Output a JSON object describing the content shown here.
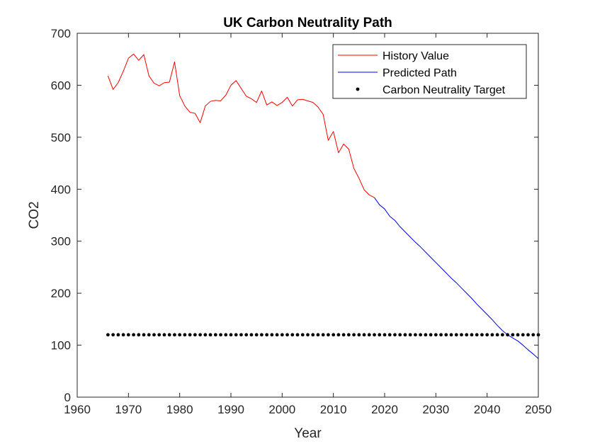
{
  "chart_data": {
    "type": "line",
    "title": "UK Carbon Neutrality Path",
    "xlabel": "Year",
    "ylabel": "CO2",
    "xlim": [
      1960,
      2050
    ],
    "ylim": [
      0,
      700
    ],
    "xticks": [
      1960,
      1970,
      1980,
      1990,
      2000,
      2010,
      2020,
      2030,
      2040,
      2050
    ],
    "yticks": [
      0,
      100,
      200,
      300,
      400,
      500,
      600,
      700
    ],
    "grid": false,
    "legend_position": "top-right",
    "series": [
      {
        "name": "History Value",
        "color": "#ff0000",
        "style": "line",
        "x": [
          1966,
          1967,
          1968,
          1969,
          1970,
          1971,
          1972,
          1973,
          1974,
          1975,
          1976,
          1977,
          1978,
          1979,
          1980,
          1981,
          1982,
          1983,
          1984,
          1985,
          1986,
          1987,
          1988,
          1989,
          1990,
          1991,
          1992,
          1993,
          1994,
          1995,
          1996,
          1997,
          1998,
          1999,
          2000,
          2001,
          2002,
          2003,
          2004,
          2005,
          2006,
          2007,
          2008,
          2009,
          2010,
          2011,
          2012,
          2013,
          2014,
          2015,
          2016,
          2017,
          2018
        ],
        "y": [
          618,
          592,
          605,
          627,
          652,
          660,
          648,
          659,
          618,
          604,
          599,
          605,
          606,
          645,
          580,
          560,
          548,
          546,
          528,
          560,
          569,
          571,
          570,
          581,
          600,
          609,
          594,
          579,
          574,
          567,
          589,
          562,
          568,
          561,
          567,
          577,
          560,
          572,
          573,
          570,
          567,
          558,
          544,
          494,
          511,
          470,
          487,
          477,
          440,
          421,
          399,
          389,
          384
        ]
      },
      {
        "name": "Predicted Path",
        "color": "#0000ff",
        "style": "line",
        "x": [
          2018,
          2019,
          2020,
          2021,
          2022,
          2023,
          2024,
          2025,
          2026,
          2027,
          2028,
          2029,
          2030,
          2031,
          2032,
          2033,
          2034,
          2035,
          2036,
          2037,
          2038,
          2039,
          2040,
          2041,
          2042,
          2043,
          2044,
          2045,
          2046,
          2047,
          2048,
          2049,
          2050
        ],
        "y": [
          384,
          370,
          362,
          348,
          340,
          328,
          318,
          308,
          298,
          289,
          279,
          269,
          259,
          249,
          239,
          229,
          220,
          210,
          200,
          190,
          179,
          169,
          159,
          149,
          138,
          128,
          120,
          114,
          108,
          100,
          91,
          83,
          74
        ]
      },
      {
        "name": "Carbon Neutrality Target",
        "color": "#000000",
        "style": "marker",
        "x_start": 1966,
        "x_end": 2050,
        "step": 1,
        "y_constant": 120
      }
    ]
  }
}
